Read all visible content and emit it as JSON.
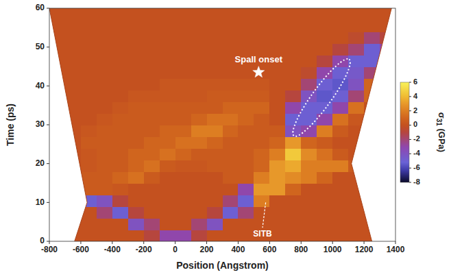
{
  "chart_data": {
    "type": "heatmap",
    "x_label": "Position (Angstrom)",
    "y_label": "Time (ps)",
    "xlim": [
      -800,
      1400
    ],
    "xticks": [
      -800,
      -600,
      -400,
      -200,
      0,
      200,
      400,
      600,
      800,
      1000,
      1200,
      1400
    ],
    "ylim": [
      0,
      60
    ],
    "yticks": [
      0,
      10,
      20,
      30,
      40,
      50,
      60
    ],
    "x_bins": [
      -800,
      -700,
      -600,
      -500,
      -400,
      -300,
      -200,
      -100,
      0,
      100,
      200,
      300,
      400,
      500,
      600,
      700,
      800,
      900,
      1000,
      1100,
      1200,
      1300,
      1400
    ],
    "y_bins": [
      0,
      3,
      6,
      9,
      12,
      15,
      18,
      21,
      24,
      27,
      30,
      33,
      36,
      39,
      42,
      45,
      48,
      51,
      54,
      57,
      60
    ],
    "cells": [
      [
        0,
        0,
        0,
        0,
        0,
        0,
        -1,
        -3,
        -3,
        -1,
        0,
        0,
        0,
        0,
        0,
        0,
        0,
        0,
        0,
        0,
        0,
        0
      ],
      [
        0,
        0,
        0,
        0,
        0,
        -4,
        -2,
        0,
        0,
        -2,
        -4,
        0,
        0,
        0,
        0,
        0,
        0,
        0,
        0,
        0,
        0,
        0
      ],
      [
        0,
        0,
        0,
        -2,
        -5,
        -1,
        0,
        0,
        0,
        0,
        -1,
        -5,
        -2,
        0,
        0,
        0,
        0,
        0,
        0,
        0,
        0,
        0
      ],
      [
        0,
        0,
        -5,
        -4,
        -1,
        0,
        0,
        0,
        0,
        0,
        0,
        -2,
        -5,
        2,
        0,
        0,
        0,
        0,
        0,
        0,
        0,
        0
      ],
      [
        0,
        0,
        0.5,
        0.5,
        0.3,
        0,
        0,
        0,
        0,
        0,
        0,
        0,
        -3,
        3,
        3,
        1,
        0,
        0,
        0,
        0,
        0,
        0
      ],
      [
        0,
        0,
        0.5,
        0.5,
        1,
        1.5,
        0.5,
        0,
        0,
        0,
        0,
        0.5,
        0.5,
        2,
        3,
        2.5,
        2,
        1,
        0,
        0,
        0,
        0
      ],
      [
        0,
        0,
        0.3,
        0.5,
        0.5,
        1,
        1.5,
        0.5,
        0.3,
        0.3,
        0.5,
        0.5,
        0.5,
        1,
        3,
        3.5,
        2,
        2,
        2,
        0.5,
        0,
        0
      ],
      [
        0,
        0,
        0.3,
        0.5,
        0.5,
        1,
        1,
        1.5,
        1,
        0.5,
        0.5,
        0.5,
        0.5,
        1,
        2,
        4.5,
        2.5,
        1.5,
        0.5,
        0,
        0,
        0
      ],
      [
        0,
        0,
        0.5,
        0.5,
        0.5,
        0.5,
        1,
        1,
        1.5,
        1.5,
        1,
        0.5,
        0.5,
        0.5,
        1,
        3,
        1,
        0.5,
        0,
        0,
        0,
        0
      ],
      [
        0,
        0,
        0.3,
        0.5,
        0.5,
        0.5,
        0.5,
        1,
        1,
        2,
        2,
        1,
        0.5,
        0.5,
        0.5,
        -4,
        -3,
        2,
        0.5,
        0,
        0,
        0
      ],
      [
        0,
        0,
        0,
        0.3,
        0.5,
        0.5,
        0.5,
        0.5,
        0.5,
        1,
        1.5,
        1.5,
        1,
        0.5,
        0,
        -5,
        -5,
        -3,
        1.5,
        0.3,
        0,
        0
      ],
      [
        0,
        0,
        0,
        0,
        0.3,
        0.5,
        0.5,
        0.5,
        0.5,
        0.5,
        0.5,
        1,
        1,
        1,
        0,
        -3,
        -5,
        -5,
        -3,
        1.5,
        0,
        0
      ],
      [
        0,
        0,
        0,
        0,
        0,
        0.3,
        0.3,
        0.3,
        0.3,
        0.3,
        0.5,
        0.5,
        0.5,
        0.5,
        0,
        -1,
        -4,
        -5.5,
        -5,
        -2,
        1,
        0
      ],
      [
        0,
        0,
        0,
        0,
        0,
        0,
        0,
        0.3,
        0.3,
        0.3,
        0.3,
        0.3,
        0.3,
        0.3,
        0,
        0,
        -2,
        -5,
        -5.5,
        -4,
        1,
        0
      ],
      [
        0,
        0,
        0,
        0,
        0,
        0,
        0,
        0,
        0,
        0,
        0,
        0,
        0,
        0,
        0,
        0,
        -0.5,
        -3,
        -5,
        -4.5,
        -2,
        0
      ],
      [
        0,
        0,
        0,
        0,
        0,
        0,
        0,
        0,
        0,
        0,
        0,
        0,
        0,
        0,
        0,
        0,
        0,
        -1,
        -3,
        -5,
        -5,
        -1
      ],
      [
        0,
        0,
        0,
        0,
        0,
        0,
        0,
        0,
        0,
        0,
        0,
        0,
        0,
        0,
        0,
        0,
        0,
        0,
        -1,
        -2,
        -5,
        -3
      ],
      [
        0,
        0,
        0,
        0,
        0,
        0,
        0,
        0,
        0,
        0,
        0,
        0,
        0,
        0,
        0,
        0,
        0,
        0,
        0,
        -0.5,
        -2,
        -1
      ],
      [
        0,
        0,
        0,
        0,
        0,
        0,
        0,
        0,
        0,
        0,
        0,
        0,
        0,
        0,
        0,
        0,
        0,
        0,
        0,
        0,
        0,
        0
      ],
      [
        0,
        0,
        0,
        0,
        0,
        0,
        0,
        0,
        0,
        0,
        0,
        0,
        0,
        0,
        0,
        0,
        0,
        0,
        0,
        0,
        0,
        0
      ]
    ],
    "colorbar": {
      "label": "σ31 (GPa)",
      "lim": [
        -8,
        6
      ],
      "ticks": [
        -8,
        -6,
        -4,
        -2,
        0,
        2,
        4,
        6
      ]
    },
    "left_surface": {
      "x": [
        -640,
        -560,
        -800
      ],
      "y": [
        0,
        10,
        60
      ]
    },
    "right_surface": {
      "x": [
        1250,
        1120,
        1375
      ],
      "y": [
        0,
        20,
        60
      ]
    },
    "region": {
      "x": [
        770,
        1090
      ],
      "y": [
        28,
        46
      ]
    },
    "annotations": [
      {
        "text": "Spall onset",
        "x": 530,
        "y": 43.5,
        "marker": "star"
      },
      {
        "text": "SITB",
        "x": 575,
        "y": 10,
        "line_to": {
          "x": 555,
          "y": 3.5
        }
      }
    ]
  }
}
